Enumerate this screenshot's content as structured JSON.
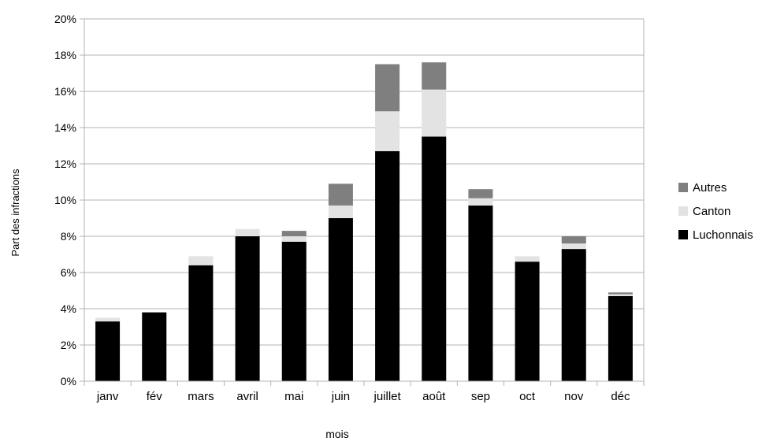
{
  "chart_data": {
    "type": "bar",
    "stacked": true,
    "categories": [
      "janv",
      "fév",
      "mars",
      "avril",
      "mai",
      "juin",
      "juillet",
      "août",
      "sep",
      "oct",
      "nov",
      "déc"
    ],
    "series": [
      {
        "name": "Luchonnais",
        "color": "#000000",
        "values": [
          3.3,
          3.8,
          6.4,
          8.0,
          7.7,
          9.0,
          12.7,
          13.5,
          9.7,
          6.6,
          7.3,
          4.7
        ]
      },
      {
        "name": "Canton",
        "color": "#e3e3e3",
        "values": [
          0.2,
          0.0,
          0.5,
          0.4,
          0.3,
          0.7,
          2.2,
          2.6,
          0.4,
          0.3,
          0.3,
          0.1
        ]
      },
      {
        "name": "Autres",
        "color": "#7f7f7f",
        "values": [
          0.0,
          0.0,
          0.0,
          0.0,
          0.3,
          1.2,
          2.6,
          1.5,
          0.5,
          0.0,
          0.4,
          0.1
        ]
      }
    ],
    "legend_order": [
      "Autres",
      "Canton",
      "Luchonnais"
    ],
    "legend_position": "right",
    "xlabel": "mois",
    "ylabel": "Part des infractions",
    "ylim": [
      0,
      20
    ],
    "yticks": [
      "0%",
      "2%",
      "4%",
      "6%",
      "8%",
      "10%",
      "12%",
      "14%",
      "16%",
      "18%",
      "20%"
    ],
    "ytick_values": [
      0,
      2,
      4,
      6,
      8,
      10,
      12,
      14,
      16,
      18,
      20
    ],
    "grid": true
  }
}
